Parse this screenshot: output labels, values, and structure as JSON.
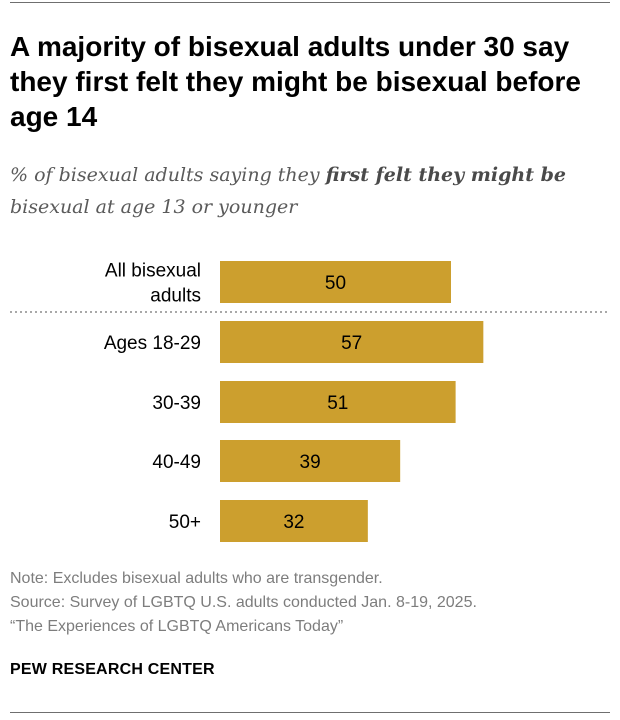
{
  "header": {
    "title": "A majority of bisexual adults under 30 say they first felt they might be bisexual before age 14",
    "subtitle_pre": "% of bisexual adults saying they ",
    "subtitle_bold": "first felt they might be",
    "subtitle_post": " bisexual at age 13 or younger"
  },
  "chart_data": {
    "type": "bar",
    "orientation": "horizontal",
    "title": "A majority of bisexual adults under 30 say they first felt they might be bisexual before age 14",
    "subtitle": "% of bisexual adults saying they first felt they might be bisexual at age 13 or younger",
    "categories": [
      "All bisexual adults",
      "Ages 18-29",
      "30-39",
      "40-49",
      "50+"
    ],
    "category_lines": [
      [
        "All bisexual",
        "adults"
      ],
      [
        "Ages 18-29"
      ],
      [
        "30-39"
      ],
      [
        "40-49"
      ],
      [
        "50+"
      ]
    ],
    "values": [
      50,
      57,
      51,
      39,
      32
    ],
    "xlabel": "",
    "ylabel": "",
    "xlim": [
      0,
      100
    ],
    "grid": false,
    "divider_after_index": 0,
    "bar_color": "#cc9f2e",
    "divider_color": "#a8a8a8",
    "label_color": "#000000"
  },
  "footer": {
    "note": "Note: Excludes bisexual adults who are transgender.",
    "source": "Source: Survey of LGBTQ U.S. adults conducted Jan. 8-19, 2025.",
    "report": "“The Experiences of LGBTQ Americans Today”",
    "brand": "PEW RESEARCH CENTER"
  }
}
